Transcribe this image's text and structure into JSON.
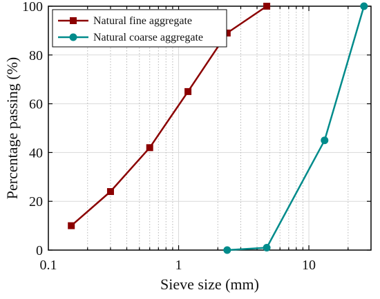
{
  "chart_data": {
    "type": "line",
    "xlabel": "Sieve size (mm)",
    "ylabel": "Percentage passing (%)",
    "x_scale": "log",
    "xlim": [
      0.1,
      30
    ],
    "ylim": [
      0,
      100
    ],
    "x_ticks": [
      0.1,
      1,
      10
    ],
    "x_tick_labels": [
      "0.1",
      "1",
      "10"
    ],
    "y_ticks": [
      0,
      20,
      40,
      60,
      80,
      100
    ],
    "y_tick_labels": [
      "0",
      "20",
      "40",
      "60",
      "80",
      "100"
    ],
    "grid": true,
    "legend_position": "top-left",
    "series": [
      {
        "name": "Natural fine aggregate",
        "color": "#8b0000",
        "marker": "square",
        "x": [
          0.15,
          0.3,
          0.6,
          1.18,
          2.36,
          4.75
        ],
        "y": [
          10,
          24,
          42,
          65,
          89,
          100
        ]
      },
      {
        "name": "Natural coarse aggregate",
        "color": "#008b8b",
        "marker": "circle",
        "x": [
          2.36,
          4.75,
          13.2,
          26.5
        ],
        "y": [
          0,
          1,
          45,
          100
        ]
      }
    ]
  }
}
